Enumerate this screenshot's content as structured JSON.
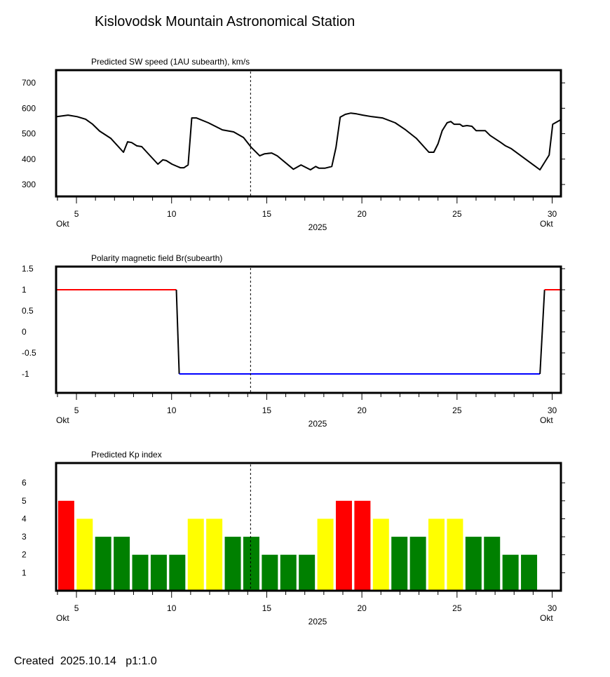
{
  "title": "Kislovodsk Mountain Astronomical Station",
  "footer": {
    "created_label": "Created",
    "date": "2025.10.14",
    "page": "p1:1.0"
  },
  "colors": {
    "red": "#ff0000",
    "yellow": "#ffff00",
    "green": "#008000",
    "blue": "#0000ff",
    "line": "#000000"
  },
  "x_axis": {
    "ticks": [
      "5",
      "10",
      "15",
      "20",
      "25",
      "30"
    ],
    "month": "Okt",
    "year": "2025",
    "now_day": 14.15,
    "xlim": [
      3.93,
      30.46
    ]
  },
  "chart_data": [
    {
      "type": "line",
      "title": "Predicted SW speed (1AU subearth), km/s",
      "ylim": [
        253,
        750
      ],
      "yticks": [
        300,
        400,
        500,
        600,
        700
      ],
      "x": [
        3.97,
        4.56,
        5.04,
        5.48,
        5.85,
        6.22,
        6.8,
        7.47,
        7.69,
        7.9,
        8.17,
        8.43,
        9.28,
        9.54,
        9.72,
        10.02,
        10.46,
        10.65,
        10.87,
        11.06,
        11.3,
        11.93,
        12.67,
        13.26,
        13.78,
        14.19,
        14.63,
        14.89,
        15.26,
        15.55,
        16.4,
        16.8,
        17.3,
        17.57,
        17.75,
        18.05,
        18.42,
        18.64,
        18.86,
        19.13,
        19.42,
        19.72,
        20.05,
        20.53,
        21.08,
        21.75,
        22.3,
        22.86,
        23.52,
        23.78,
        24.0,
        24.22,
        24.48,
        24.67,
        24.85,
        25.15,
        25.3,
        25.52,
        25.78,
        26.0,
        26.48,
        26.74,
        27.29,
        27.55,
        27.85,
        29.36,
        29.84,
        30.03,
        30.43
      ],
      "y": [
        567,
        573,
        567,
        557,
        537,
        510,
        482,
        427,
        468,
        465,
        452,
        449,
        380,
        397,
        394,
        380,
        366,
        366,
        377,
        562,
        562,
        543,
        515,
        507,
        485,
        446,
        413,
        421,
        424,
        413,
        360,
        377,
        358,
        371,
        364,
        364,
        371,
        446,
        565,
        576,
        581,
        578,
        573,
        567,
        562,
        543,
        515,
        482,
        427,
        427,
        460,
        512,
        543,
        548,
        537,
        537,
        529,
        532,
        529,
        512,
        512,
        493,
        466,
        452,
        441,
        358,
        416,
        537,
        554
      ]
    },
    {
      "type": "line",
      "title": "Polarity magnetic field  Br(subearth)",
      "ylim": [
        -1.45,
        1.55
      ],
      "yticks": [
        1.5,
        1,
        0.5,
        0,
        -0.5,
        -1
      ],
      "ytick_labels": [
        "1.5",
        "1",
        "0.5",
        "0",
        "-0.5",
        "-1"
      ],
      "x": [
        3.93,
        10.25,
        10.4,
        29.36,
        29.6,
        30.46
      ],
      "y": [
        1,
        1,
        -1,
        -1,
        1,
        1
      ]
    },
    {
      "type": "bar",
      "title": "Predicted Kp index",
      "ylim": [
        0,
        7.1
      ],
      "yticks": [
        1,
        2,
        3,
        4,
        5,
        6
      ],
      "values": [
        5,
        4,
        3,
        3,
        2,
        2,
        2,
        4,
        4,
        3,
        3,
        2,
        2,
        2,
        4,
        5,
        5,
        4,
        3,
        3,
        4,
        4,
        3,
        3,
        2,
        2
      ],
      "bar_colors": [
        "red",
        "yellow",
        "green",
        "green",
        "green",
        "green",
        "green",
        "yellow",
        "yellow",
        "green",
        "green",
        "green",
        "green",
        "green",
        "yellow",
        "red",
        "red",
        "yellow",
        "green",
        "green",
        "yellow",
        "yellow",
        "green",
        "green",
        "green",
        "green"
      ]
    }
  ]
}
